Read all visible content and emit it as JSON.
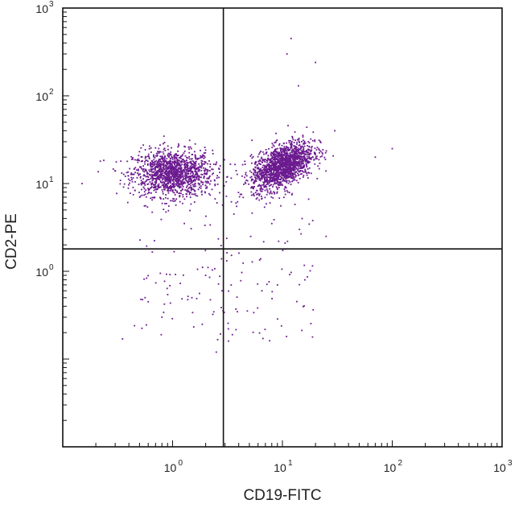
{
  "chart_data": {
    "type": "scatter",
    "title": "",
    "xlabel": "CD19-FITC",
    "ylabel": "CD2-PE",
    "x_scale": "log",
    "y_scale": "log",
    "xlim": [
      0.1,
      1000
    ],
    "ylim": [
      0.01,
      1000
    ],
    "x_ticks": [
      {
        "base": "10",
        "exp": "0",
        "value": 1
      },
      {
        "base": "10",
        "exp": "1",
        "value": 10
      },
      {
        "base": "10",
        "exp": "2",
        "value": 100
      },
      {
        "base": "10",
        "exp": "3",
        "value": 1000
      }
    ],
    "y_ticks": [
      {
        "base": "10",
        "exp": "0",
        "value": 1
      },
      {
        "base": "10",
        "exp": "1",
        "value": 10
      },
      {
        "base": "10",
        "exp": "2",
        "value": 100
      },
      {
        "base": "10",
        "exp": "3",
        "value": 1000
      }
    ],
    "quadrant_gates": {
      "x": 2.9,
      "y": 1.8
    },
    "grid": false,
    "point_color": "#6b1a8f",
    "populations": [
      {
        "center_x": 1.0,
        "center_y": 13,
        "approx_events": 1400
      },
      {
        "center_x": 10,
        "center_y": 16,
        "approx_events": 1600
      }
    ],
    "sample_points": [
      {
        "x": 0.15,
        "y": 10
      },
      {
        "x": 0.22,
        "y": 18
      },
      {
        "x": 0.35,
        "y": 0.17
      },
      {
        "x": 0.45,
        "y": 0.24
      },
      {
        "x": 0.6,
        "y": 0.45
      },
      {
        "x": 0.8,
        "y": 0.3
      },
      {
        "x": 1.5,
        "y": 0.5
      },
      {
        "x": 2.0,
        "y": 0.9
      },
      {
        "x": 2.5,
        "y": 0.12
      },
      {
        "x": 6.5,
        "y": 0.6
      },
      {
        "x": 9,
        "y": 0.7
      },
      {
        "x": 16,
        "y": 0.8
      },
      {
        "x": 12,
        "y": 450
      },
      {
        "x": 11,
        "y": 300
      },
      {
        "x": 20,
        "y": 240
      },
      {
        "x": 14,
        "y": 130
      },
      {
        "x": 70,
        "y": 20
      },
      {
        "x": 100,
        "y": 25
      },
      {
        "x": 30,
        "y": 40
      },
      {
        "x": 25,
        "y": 2.5
      },
      {
        "x": 8,
        "y": 3.5
      }
    ]
  }
}
